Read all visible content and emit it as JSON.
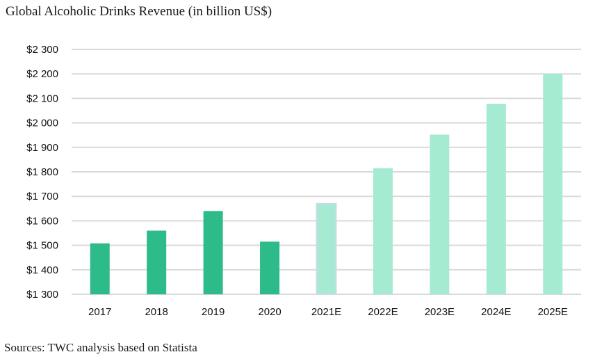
{
  "title": "Global Alcoholic Drinks Revenue (in billion US$)",
  "source": "Sources: TWC analysis based on Statista",
  "chart_data": {
    "type": "bar",
    "title": "Global Alcoholic Drinks Revenue (in billion US$)",
    "categories": [
      "2017",
      "2018",
      "2019",
      "2020",
      "2021E",
      "2022E",
      "2023E",
      "2024E",
      "2025E"
    ],
    "values": [
      1508,
      1560,
      1640,
      1515,
      1670,
      1815,
      1952,
      2078,
      2200
    ],
    "ylim": [
      1300,
      2300
    ],
    "yticks": [
      1300,
      1400,
      1500,
      1600,
      1700,
      1800,
      1900,
      2000,
      2100,
      2200,
      2300
    ],
    "ytick_labels": [
      "$1 300",
      "$1 400",
      "$1 500",
      "$1 600",
      "$1 700",
      "$1 800",
      "$1 900",
      "$2 000",
      "$2 100",
      "$2 200",
      "$2 300"
    ],
    "xlabel": "",
    "ylabel": "",
    "grid": true,
    "colors": {
      "actual": "#2dbb8a",
      "estimate": "#a5ebd2",
      "highlight_outline": "#cfd8ea",
      "grid": "#d9d9d9"
    },
    "estimate_flags": [
      false,
      false,
      false,
      false,
      true,
      true,
      true,
      true,
      true
    ],
    "highlighted": [
      false,
      false,
      false,
      false,
      true,
      false,
      false,
      false,
      false
    ]
  }
}
